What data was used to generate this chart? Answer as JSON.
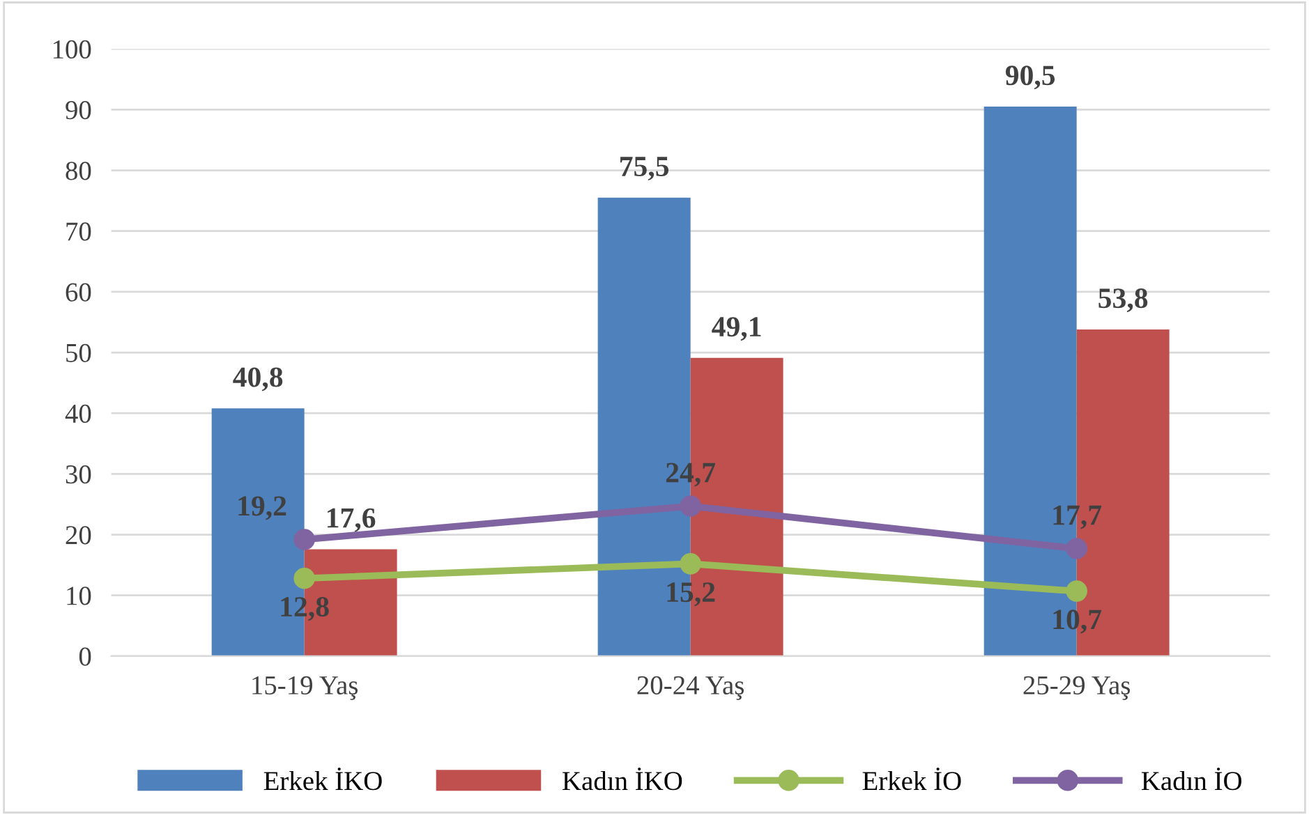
{
  "chart_data": {
    "type": "bar",
    "categories": [
      "15-19 Yaş",
      "20-24 Yaş",
      "25-29 Yaş"
    ],
    "series": [
      {
        "name": "Erkek İKO",
        "color": "#4f81bd",
        "values": [
          40.8,
          75.5,
          90.5
        ],
        "value_labels": [
          "40,8",
          "75,5",
          "90,5"
        ]
      },
      {
        "name": "Kadın İKO",
        "color": "#c0504d",
        "values": [
          17.6,
          49.1,
          53.8
        ],
        "value_labels": [
          "17,6",
          "49,1",
          "53,8"
        ]
      },
      {
        "name": "Erkek İO",
        "type": "line",
        "color": "#9bbb59",
        "values": [
          12.8,
          15.2,
          10.7
        ],
        "value_labels": [
          "12,8",
          "15,2",
          "10,7"
        ]
      },
      {
        "name": "Kadın İO",
        "type": "line",
        "color": "#8064a2",
        "values": [
          19.2,
          24.7,
          17.7
        ],
        "value_labels": [
          "19,2",
          "24,7",
          "17,7"
        ]
      }
    ],
    "ylim": [
      0,
      100
    ],
    "yticks": [
      0,
      10,
      20,
      30,
      40,
      50,
      60,
      70,
      80,
      90,
      100
    ],
    "grid": "y",
    "legend": "bottom",
    "marker": "circle",
    "line_style": "solid"
  }
}
